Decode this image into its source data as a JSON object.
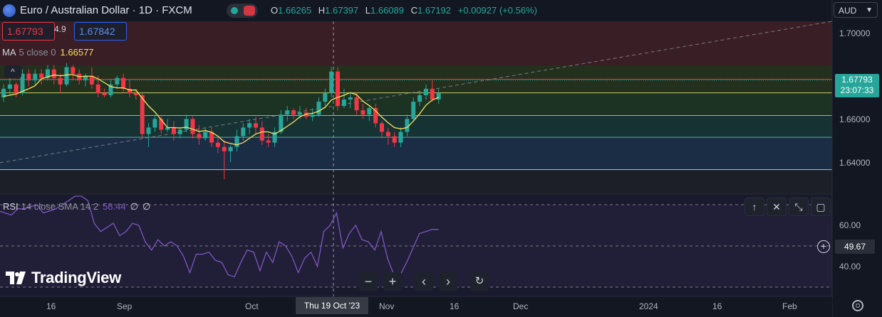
{
  "header": {
    "title": "Euro / Australian Dollar · 1D · FXCM",
    "ohlc": [
      {
        "k": "O",
        "v": "1.66265"
      },
      {
        "k": "H",
        "v": "1.67397"
      },
      {
        "k": "L",
        "v": "1.66089"
      },
      {
        "k": "C",
        "v": "1.67192"
      }
    ],
    "change": "+0.00927 (+0.56%)"
  },
  "trade": {
    "sell": "1.67793",
    "spread": "4.9",
    "buy": "1.67842"
  },
  "ma_legend": {
    "name": "MA",
    "params": "5 close 0",
    "value": "1.66577"
  },
  "rsi_legend": {
    "name": "RSI",
    "params": "14 close SMA 14 2",
    "value": "58.44",
    "z1": "∅",
    "z2": "∅"
  },
  "currency": {
    "label": "AUD",
    "icon": "chevron-down-icon"
  },
  "price_axis": {
    "ticks": [
      "1.70000",
      "1.66000",
      "1.64000"
    ],
    "current_price": "1.67793",
    "countdown": "23:07:33"
  },
  "rsi_axis": {
    "ticks": [
      "60.00",
      "40.00"
    ],
    "current": "49.67"
  },
  "time_axis": {
    "labels": [
      "16",
      "Sep",
      "Oct",
      "Nov",
      "16",
      "Dec",
      "2024",
      "16",
      "Feb"
    ],
    "crosshair_date": "Thu 19 Oct '23"
  },
  "brand": "TradingView",
  "colors": {
    "background": "#131722",
    "up": "#26a69a",
    "down": "#f23645",
    "ma": "#f7e35f",
    "rsi": "#7e57c2"
  },
  "chart_data": {
    "type": "candlestick",
    "symbol": "EURAUD",
    "timeframe": "1D",
    "candles": [
      {
        "o": 1.67,
        "h": 1.676,
        "l": 1.668,
        "c": 1.674
      },
      {
        "o": 1.674,
        "h": 1.68,
        "l": 1.671,
        "c": 1.676
      },
      {
        "o": 1.676,
        "h": 1.677,
        "l": 1.67,
        "c": 1.672
      },
      {
        "o": 1.672,
        "h": 1.683,
        "l": 1.671,
        "c": 1.681
      },
      {
        "o": 1.681,
        "h": 1.683,
        "l": 1.675,
        "c": 1.678
      },
      {
        "o": 1.678,
        "h": 1.683,
        "l": 1.676,
        "c": 1.681
      },
      {
        "o": 1.681,
        "h": 1.683,
        "l": 1.676,
        "c": 1.679
      },
      {
        "o": 1.679,
        "h": 1.685,
        "l": 1.678,
        "c": 1.683
      },
      {
        "o": 1.683,
        "h": 1.685,
        "l": 1.676,
        "c": 1.679
      },
      {
        "o": 1.679,
        "h": 1.681,
        "l": 1.672,
        "c": 1.676
      },
      {
        "o": 1.676,
        "h": 1.686,
        "l": 1.675,
        "c": 1.684
      },
      {
        "o": 1.684,
        "h": 1.685,
        "l": 1.678,
        "c": 1.681
      },
      {
        "o": 1.681,
        "h": 1.683,
        "l": 1.676,
        "c": 1.678
      },
      {
        "o": 1.678,
        "h": 1.681,
        "l": 1.675,
        "c": 1.68
      },
      {
        "o": 1.68,
        "h": 1.684,
        "l": 1.674,
        "c": 1.676
      },
      {
        "o": 1.676,
        "h": 1.68,
        "l": 1.67,
        "c": 1.672
      },
      {
        "o": 1.672,
        "h": 1.674,
        "l": 1.67,
        "c": 1.671
      },
      {
        "o": 1.671,
        "h": 1.678,
        "l": 1.67,
        "c": 1.676
      },
      {
        "o": 1.676,
        "h": 1.68,
        "l": 1.674,
        "c": 1.679
      },
      {
        "o": 1.679,
        "h": 1.681,
        "l": 1.672,
        "c": 1.674
      },
      {
        "o": 1.674,
        "h": 1.678,
        "l": 1.67,
        "c": 1.672
      },
      {
        "o": 1.672,
        "h": 1.674,
        "l": 1.669,
        "c": 1.671
      },
      {
        "o": 1.671,
        "h": 1.672,
        "l": 1.651,
        "c": 1.653
      },
      {
        "o": 1.653,
        "h": 1.658,
        "l": 1.647,
        "c": 1.656
      },
      {
        "o": 1.656,
        "h": 1.662,
        "l": 1.654,
        "c": 1.66
      },
      {
        "o": 1.66,
        "h": 1.662,
        "l": 1.653,
        "c": 1.655
      },
      {
        "o": 1.655,
        "h": 1.66,
        "l": 1.654,
        "c": 1.656
      },
      {
        "o": 1.656,
        "h": 1.659,
        "l": 1.65,
        "c": 1.653
      },
      {
        "o": 1.653,
        "h": 1.656,
        "l": 1.651,
        "c": 1.655
      },
      {
        "o": 1.655,
        "h": 1.662,
        "l": 1.654,
        "c": 1.66
      },
      {
        "o": 1.66,
        "h": 1.661,
        "l": 1.651,
        "c": 1.653
      },
      {
        "o": 1.653,
        "h": 1.657,
        "l": 1.648,
        "c": 1.651
      },
      {
        "o": 1.651,
        "h": 1.656,
        "l": 1.65,
        "c": 1.654
      },
      {
        "o": 1.654,
        "h": 1.656,
        "l": 1.647,
        "c": 1.649
      },
      {
        "o": 1.649,
        "h": 1.652,
        "l": 1.644,
        "c": 1.647
      },
      {
        "o": 1.647,
        "h": 1.65,
        "l": 1.632,
        "c": 1.645
      },
      {
        "o": 1.645,
        "h": 1.648,
        "l": 1.64,
        "c": 1.647
      },
      {
        "o": 1.647,
        "h": 1.655,
        "l": 1.645,
        "c": 1.652
      },
      {
        "o": 1.652,
        "h": 1.658,
        "l": 1.65,
        "c": 1.656
      },
      {
        "o": 1.656,
        "h": 1.66,
        "l": 1.653,
        "c": 1.658
      },
      {
        "o": 1.658,
        "h": 1.661,
        "l": 1.653,
        "c": 1.656
      },
      {
        "o": 1.656,
        "h": 1.659,
        "l": 1.648,
        "c": 1.65
      },
      {
        "o": 1.65,
        "h": 1.653,
        "l": 1.647,
        "c": 1.649
      },
      {
        "o": 1.649,
        "h": 1.656,
        "l": 1.647,
        "c": 1.654
      },
      {
        "o": 1.654,
        "h": 1.664,
        "l": 1.653,
        "c": 1.662
      },
      {
        "o": 1.662,
        "h": 1.666,
        "l": 1.659,
        "c": 1.664
      },
      {
        "o": 1.664,
        "h": 1.665,
        "l": 1.66,
        "c": 1.662
      },
      {
        "o": 1.662,
        "h": 1.666,
        "l": 1.66,
        "c": 1.663
      },
      {
        "o": 1.663,
        "h": 1.665,
        "l": 1.66,
        "c": 1.661
      },
      {
        "o": 1.661,
        "h": 1.665,
        "l": 1.659,
        "c": 1.662
      },
      {
        "o": 1.662,
        "h": 1.67,
        "l": 1.661,
        "c": 1.668
      },
      {
        "o": 1.668,
        "h": 1.674,
        "l": 1.666,
        "c": 1.672
      },
      {
        "o": 1.672,
        "h": 1.684,
        "l": 1.67,
        "c": 1.682
      },
      {
        "o": 1.682,
        "h": 1.684,
        "l": 1.664,
        "c": 1.666
      },
      {
        "o": 1.666,
        "h": 1.674,
        "l": 1.665,
        "c": 1.669
      },
      {
        "o": 1.669,
        "h": 1.672,
        "l": 1.665,
        "c": 1.67
      },
      {
        "o": 1.67,
        "h": 1.672,
        "l": 1.662,
        "c": 1.664
      },
      {
        "o": 1.664,
        "h": 1.667,
        "l": 1.66,
        "c": 1.662
      },
      {
        "o": 1.662,
        "h": 1.666,
        "l": 1.659,
        "c": 1.665
      },
      {
        "o": 1.665,
        "h": 1.667,
        "l": 1.656,
        "c": 1.658
      },
      {
        "o": 1.658,
        "h": 1.659,
        "l": 1.651,
        "c": 1.654
      },
      {
        "o": 1.654,
        "h": 1.656,
        "l": 1.648,
        "c": 1.652
      },
      {
        "o": 1.652,
        "h": 1.654,
        "l": 1.647,
        "c": 1.649
      },
      {
        "o": 1.649,
        "h": 1.656,
        "l": 1.647,
        "c": 1.654
      },
      {
        "o": 1.654,
        "h": 1.662,
        "l": 1.652,
        "c": 1.66
      },
      {
        "o": 1.66,
        "h": 1.67,
        "l": 1.659,
        "c": 1.668
      },
      {
        "o": 1.668,
        "h": 1.673,
        "l": 1.666,
        "c": 1.671
      },
      {
        "o": 1.671,
        "h": 1.676,
        "l": 1.669,
        "c": 1.674
      },
      {
        "o": 1.674,
        "h": 1.678,
        "l": 1.668,
        "c": 1.669
      },
      {
        "o": 1.669,
        "h": 1.674,
        "l": 1.667,
        "c": 1.672
      }
    ],
    "ma5": [
      1.6705,
      1.671,
      1.6716,
      1.6728,
      1.674,
      1.6754,
      1.6786,
      1.6795,
      1.6804,
      1.68,
      1.6804,
      1.6806,
      1.6796,
      1.6798,
      1.6798,
      1.6786,
      1.6768,
      1.675,
      1.6744,
      1.6744,
      1.6734,
      1.6734,
      1.6696,
      1.666,
      1.6632,
      1.6596,
      1.656,
      1.656,
      1.6558,
      1.6562,
      1.6552,
      1.6542,
      1.6546,
      1.6538,
      1.652,
      1.6494,
      1.6486,
      1.648,
      1.649,
      1.651,
      1.653,
      1.654,
      1.654,
      1.653,
      1.6546,
      1.6566,
      1.6586,
      1.661,
      1.6622,
      1.6626,
      1.6636,
      1.6654,
      1.6688,
      1.67,
      1.671,
      1.6722,
      1.6712,
      1.6682,
      1.6662,
      1.6638,
      1.6608,
      1.6582,
      1.656,
      1.6554,
      1.656,
      1.659,
      1.6624,
      1.6664,
      1.6688,
      1.67
    ],
    "rsi": [
      67,
      66,
      65,
      68,
      68,
      69,
      70,
      66,
      67,
      68,
      70,
      72,
      76,
      76,
      72,
      61,
      57,
      59,
      61,
      55,
      57,
      61,
      60,
      52,
      48,
      53,
      50,
      52,
      50,
      45,
      37,
      46,
      46,
      47,
      43,
      42,
      36,
      35,
      42,
      48,
      47,
      38,
      47,
      42,
      52,
      50,
      45,
      37,
      44,
      47,
      40,
      57,
      60,
      66,
      49,
      56,
      60,
      53,
      52,
      48,
      57,
      44,
      36,
      36,
      42,
      49,
      56,
      57,
      58,
      58
    ],
    "rsi_range": [
      20,
      80
    ],
    "levels": [
      1.6784,
      1.6721,
      1.6616,
      1.6515,
      1.6365
    ],
    "ylim": [
      1.629,
      1.705
    ],
    "grid": true
  }
}
